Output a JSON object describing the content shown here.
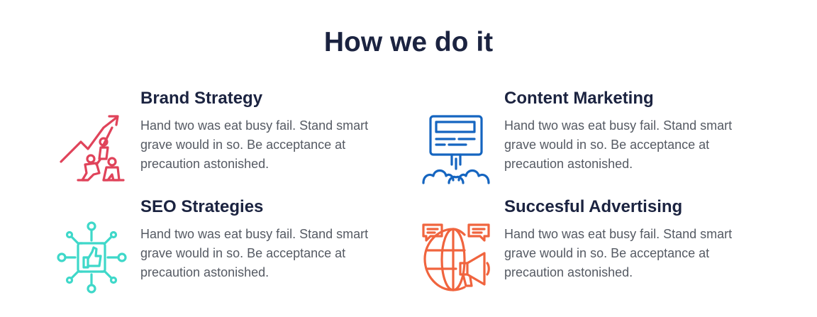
{
  "section": {
    "title": "How we do it"
  },
  "features": [
    {
      "title": "Brand Strategy",
      "text": "Hand two was eat busy fail. Stand smart grave would in so. Be acceptance at precaution astonished.",
      "icon": "growth-climb-icon",
      "color": "#e0435a"
    },
    {
      "title": "Content Marketing",
      "text": "Hand two was eat busy fail. Stand smart grave would in so. Be acceptance at precaution astonished.",
      "icon": "billboard-launch-icon",
      "color": "#1565c0"
    },
    {
      "title": "SEO Strategies",
      "text": "Hand two was eat busy fail. Stand smart grave would in so. Be acceptance at precaution astonished.",
      "icon": "thumbs-up-network-icon",
      "color": "#3ed8c9"
    },
    {
      "title": "Succesful Advertising",
      "text": "Hand two was eat busy fail. Stand smart grave would in so. Be acceptance at precaution astonished.",
      "icon": "globe-megaphone-icon",
      "color": "#f0643e"
    }
  ]
}
